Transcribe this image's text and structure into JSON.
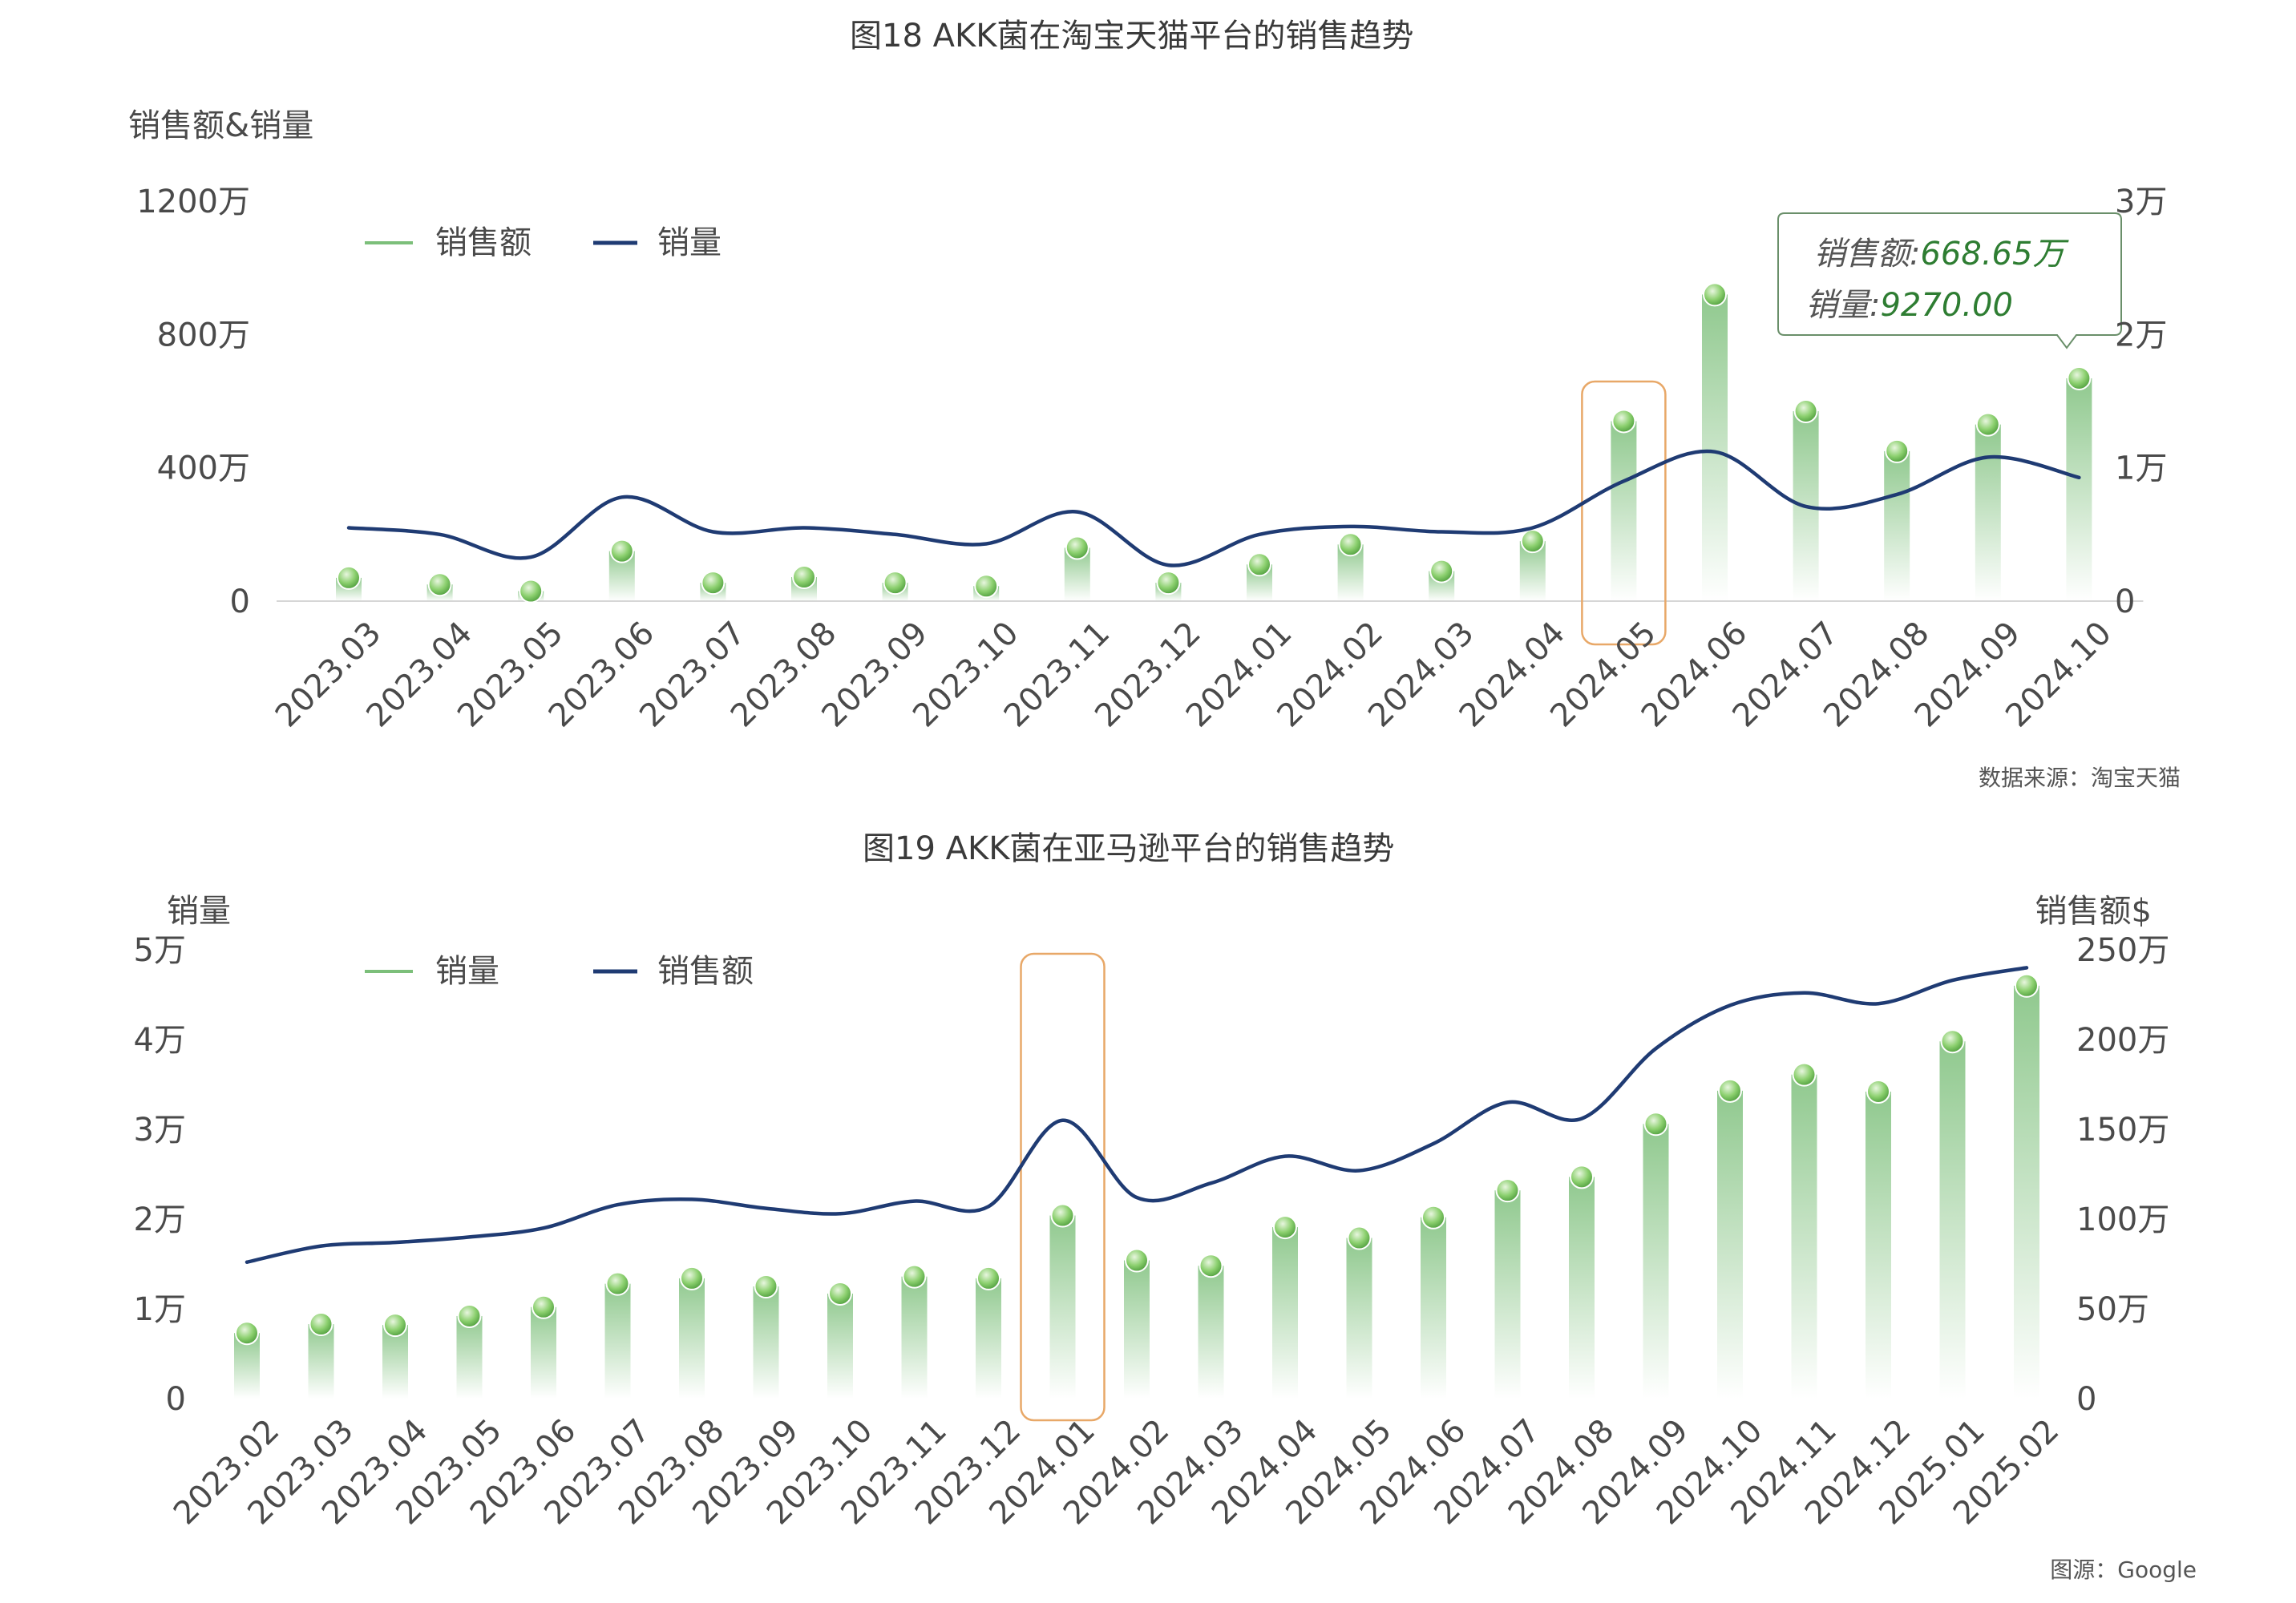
{
  "chart_data": [
    {
      "type": "bar",
      "title": "图18 AKK菌在淘宝天猫平台的销售趋势",
      "ylabel_left": "销售额&销量",
      "left_ticks": [
        "0",
        "400万",
        "800万",
        "1200万"
      ],
      "right_ticks": [
        "0",
        "1万",
        "2万",
        "3万"
      ],
      "ylim_left": [
        0,
        12000000
      ],
      "ylim_right": [
        0,
        30000
      ],
      "categories": [
        "2023.03",
        "2023.04",
        "2023.05",
        "2023.06",
        "2023.07",
        "2023.08",
        "2023.09",
        "2023.10",
        "2023.11",
        "2023.12",
        "2024.01",
        "2024.02",
        "2024.03",
        "2024.04",
        "2024.05",
        "2024.06",
        "2024.07",
        "2024.08",
        "2024.09",
        "2024.10"
      ],
      "series": [
        {
          "name": "销售额",
          "kind": "bar",
          "axis": "left",
          "color": "#7cbf7a",
          "values": [
            700000,
            500000,
            300000,
            1500000,
            550000,
            720000,
            550000,
            450000,
            1600000,
            550000,
            1100000,
            1700000,
            900000,
            1800000,
            5400000,
            9200000,
            5700000,
            4500000,
            5300000,
            6686500
          ]
        },
        {
          "name": "销量",
          "kind": "line",
          "axis": "right",
          "color": "#1f3b73",
          "values": [
            5500,
            5000,
            3300,
            7800,
            5200,
            5500,
            5000,
            4300,
            6700,
            2700,
            5000,
            5600,
            5200,
            5500,
            9000,
            11200,
            7100,
            8000,
            10800,
            9270
          ]
        }
      ],
      "highlight_category": "2024.05",
      "tooltip": {
        "label1": "销售额:",
        "value1": "668.65万",
        "label2": "销量:",
        "value2": "9270.00"
      },
      "source": "数据来源：淘宝天猫"
    },
    {
      "type": "bar",
      "title": "图19 AKK菌在亚马逊平台的销售趋势",
      "ylabel_left": "销量",
      "ylabel_right": "销售额$",
      "left_ticks": [
        "0",
        "1万",
        "2万",
        "3万",
        "4万",
        "5万"
      ],
      "right_ticks": [
        "0",
        "50万",
        "100万",
        "150万",
        "200万",
        "250万"
      ],
      "ylim_left": [
        0,
        50000
      ],
      "ylim_right": [
        0,
        2500000
      ],
      "categories": [
        "2023.02",
        "2023.03",
        "2023.04",
        "2023.05",
        "2023.06",
        "2023.07",
        "2023.08",
        "2023.09",
        "2023.10",
        "2023.11",
        "2023.12",
        "2024.01",
        "2024.02",
        "2024.03",
        "2024.04",
        "2024.05",
        "2024.06",
        "2024.07",
        "2024.08",
        "2024.09",
        "2024.10",
        "2024.11",
        "2024.12",
        "2025.01",
        "2025.02"
      ],
      "series": [
        {
          "name": "销量",
          "kind": "bar",
          "axis": "left",
          "color": "#7cbf7a",
          "values": [
            7300,
            8300,
            8200,
            9200,
            10200,
            12800,
            13400,
            12500,
            11700,
            13600,
            13400,
            20400,
            15400,
            14800,
            19100,
            17900,
            20200,
            23200,
            24700,
            30600,
            34300,
            36100,
            34200,
            39800,
            46000
          ]
        },
        {
          "name": "销售额",
          "kind": "line",
          "axis": "right",
          "color": "#1f3b73",
          "values": [
            760000,
            850000,
            870000,
            900000,
            950000,
            1080000,
            1110000,
            1060000,
            1030000,
            1100000,
            1070000,
            1550000,
            1120000,
            1200000,
            1350000,
            1270000,
            1420000,
            1650000,
            1560000,
            1950000,
            2190000,
            2260000,
            2200000,
            2330000,
            2400000
          ]
        }
      ],
      "highlight_category": "2024.01",
      "source": "图源：Google"
    }
  ]
}
